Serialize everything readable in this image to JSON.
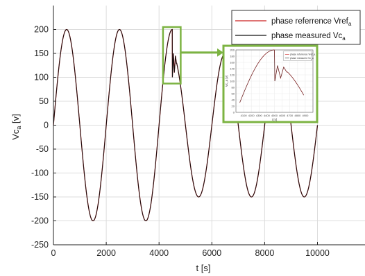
{
  "chart_data": {
    "type": "line",
    "xlabel": "t [s]",
    "ylabel_main": "Vc",
    "ylabel_sub": "a",
    "ylabel_unit": " [v]",
    "xlim": [
      0,
      11800
    ],
    "ylim": [
      -250,
      250
    ],
    "xticks": [
      0,
      2000,
      4000,
      6000,
      8000,
      10000
    ],
    "yticks": [
      -250,
      -200,
      -150,
      -100,
      -50,
      0,
      50,
      100,
      150,
      200
    ],
    "grid": true,
    "legend_position": "top-right",
    "series": [
      {
        "name_main": "phase referrence Vref",
        "name_sub": "a",
        "color": "#cc2222"
      },
      {
        "name_main": "phase measured Vc",
        "name_sub": "a",
        "color": "#111111"
      }
    ],
    "signal": {
      "period_s": 2000,
      "amplitude_phase1": 200,
      "amplitude_phase2": 150,
      "phase1_end_s": 4500,
      "phase2_start_s": 4660,
      "end_s": 10000,
      "transient_points": [
        [
          4500,
          200
        ],
        [
          4505,
          100
        ],
        [
          4540,
          150
        ],
        [
          4580,
          110
        ],
        [
          4620,
          145
        ],
        [
          4660,
          129
        ]
      ]
    },
    "zoom_box": {
      "x_range": [
        4150,
        4820
      ],
      "y_range": [
        87,
        205
      ]
    },
    "inset": {
      "xlim": [
        4000,
        5000
      ],
      "ylim": [
        0,
        200
      ],
      "xticks": [
        4100,
        4200,
        4300,
        4400,
        4500,
        4600,
        4700,
        4800,
        4900
      ],
      "yticks": [
        0,
        20,
        40,
        60,
        80,
        100,
        120,
        140,
        160,
        180,
        200
      ],
      "ylabel": "Vc_a [v]",
      "xlabel": "t [s]",
      "legend": [
        "phase referrence Vref_a",
        "phase measured Vc_a"
      ]
    }
  },
  "colors": {
    "zoom_green": "#7cb342",
    "grid": "#dcdcdc",
    "axis": "#222222"
  }
}
